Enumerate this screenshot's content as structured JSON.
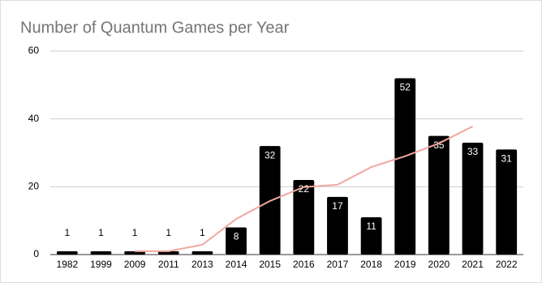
{
  "chart_data": {
    "type": "bar",
    "title": "Number of Quantum Games per Year",
    "categories": [
      "1982",
      "1999",
      "2009",
      "2011",
      "2013",
      "2014",
      "2015",
      "2016",
      "2017",
      "2018",
      "2019",
      "2020",
      "2021",
      "2022"
    ],
    "series": [
      {
        "type": "bar",
        "color": "#000000",
        "values": [
          1,
          1,
          1,
          1,
          1,
          8,
          32,
          22,
          17,
          11,
          52,
          35,
          33,
          31
        ]
      },
      {
        "type": "line",
        "color": "#f0a89e",
        "values": [
          null,
          null,
          1,
          1,
          2.9,
          10.5,
          15.8,
          19.9,
          20.6,
          25.8,
          29,
          32.8,
          37.8,
          null
        ]
      }
    ],
    "ylim": [
      0,
      60
    ],
    "yticks": [
      0,
      20,
      40,
      60
    ],
    "grid": true
  }
}
